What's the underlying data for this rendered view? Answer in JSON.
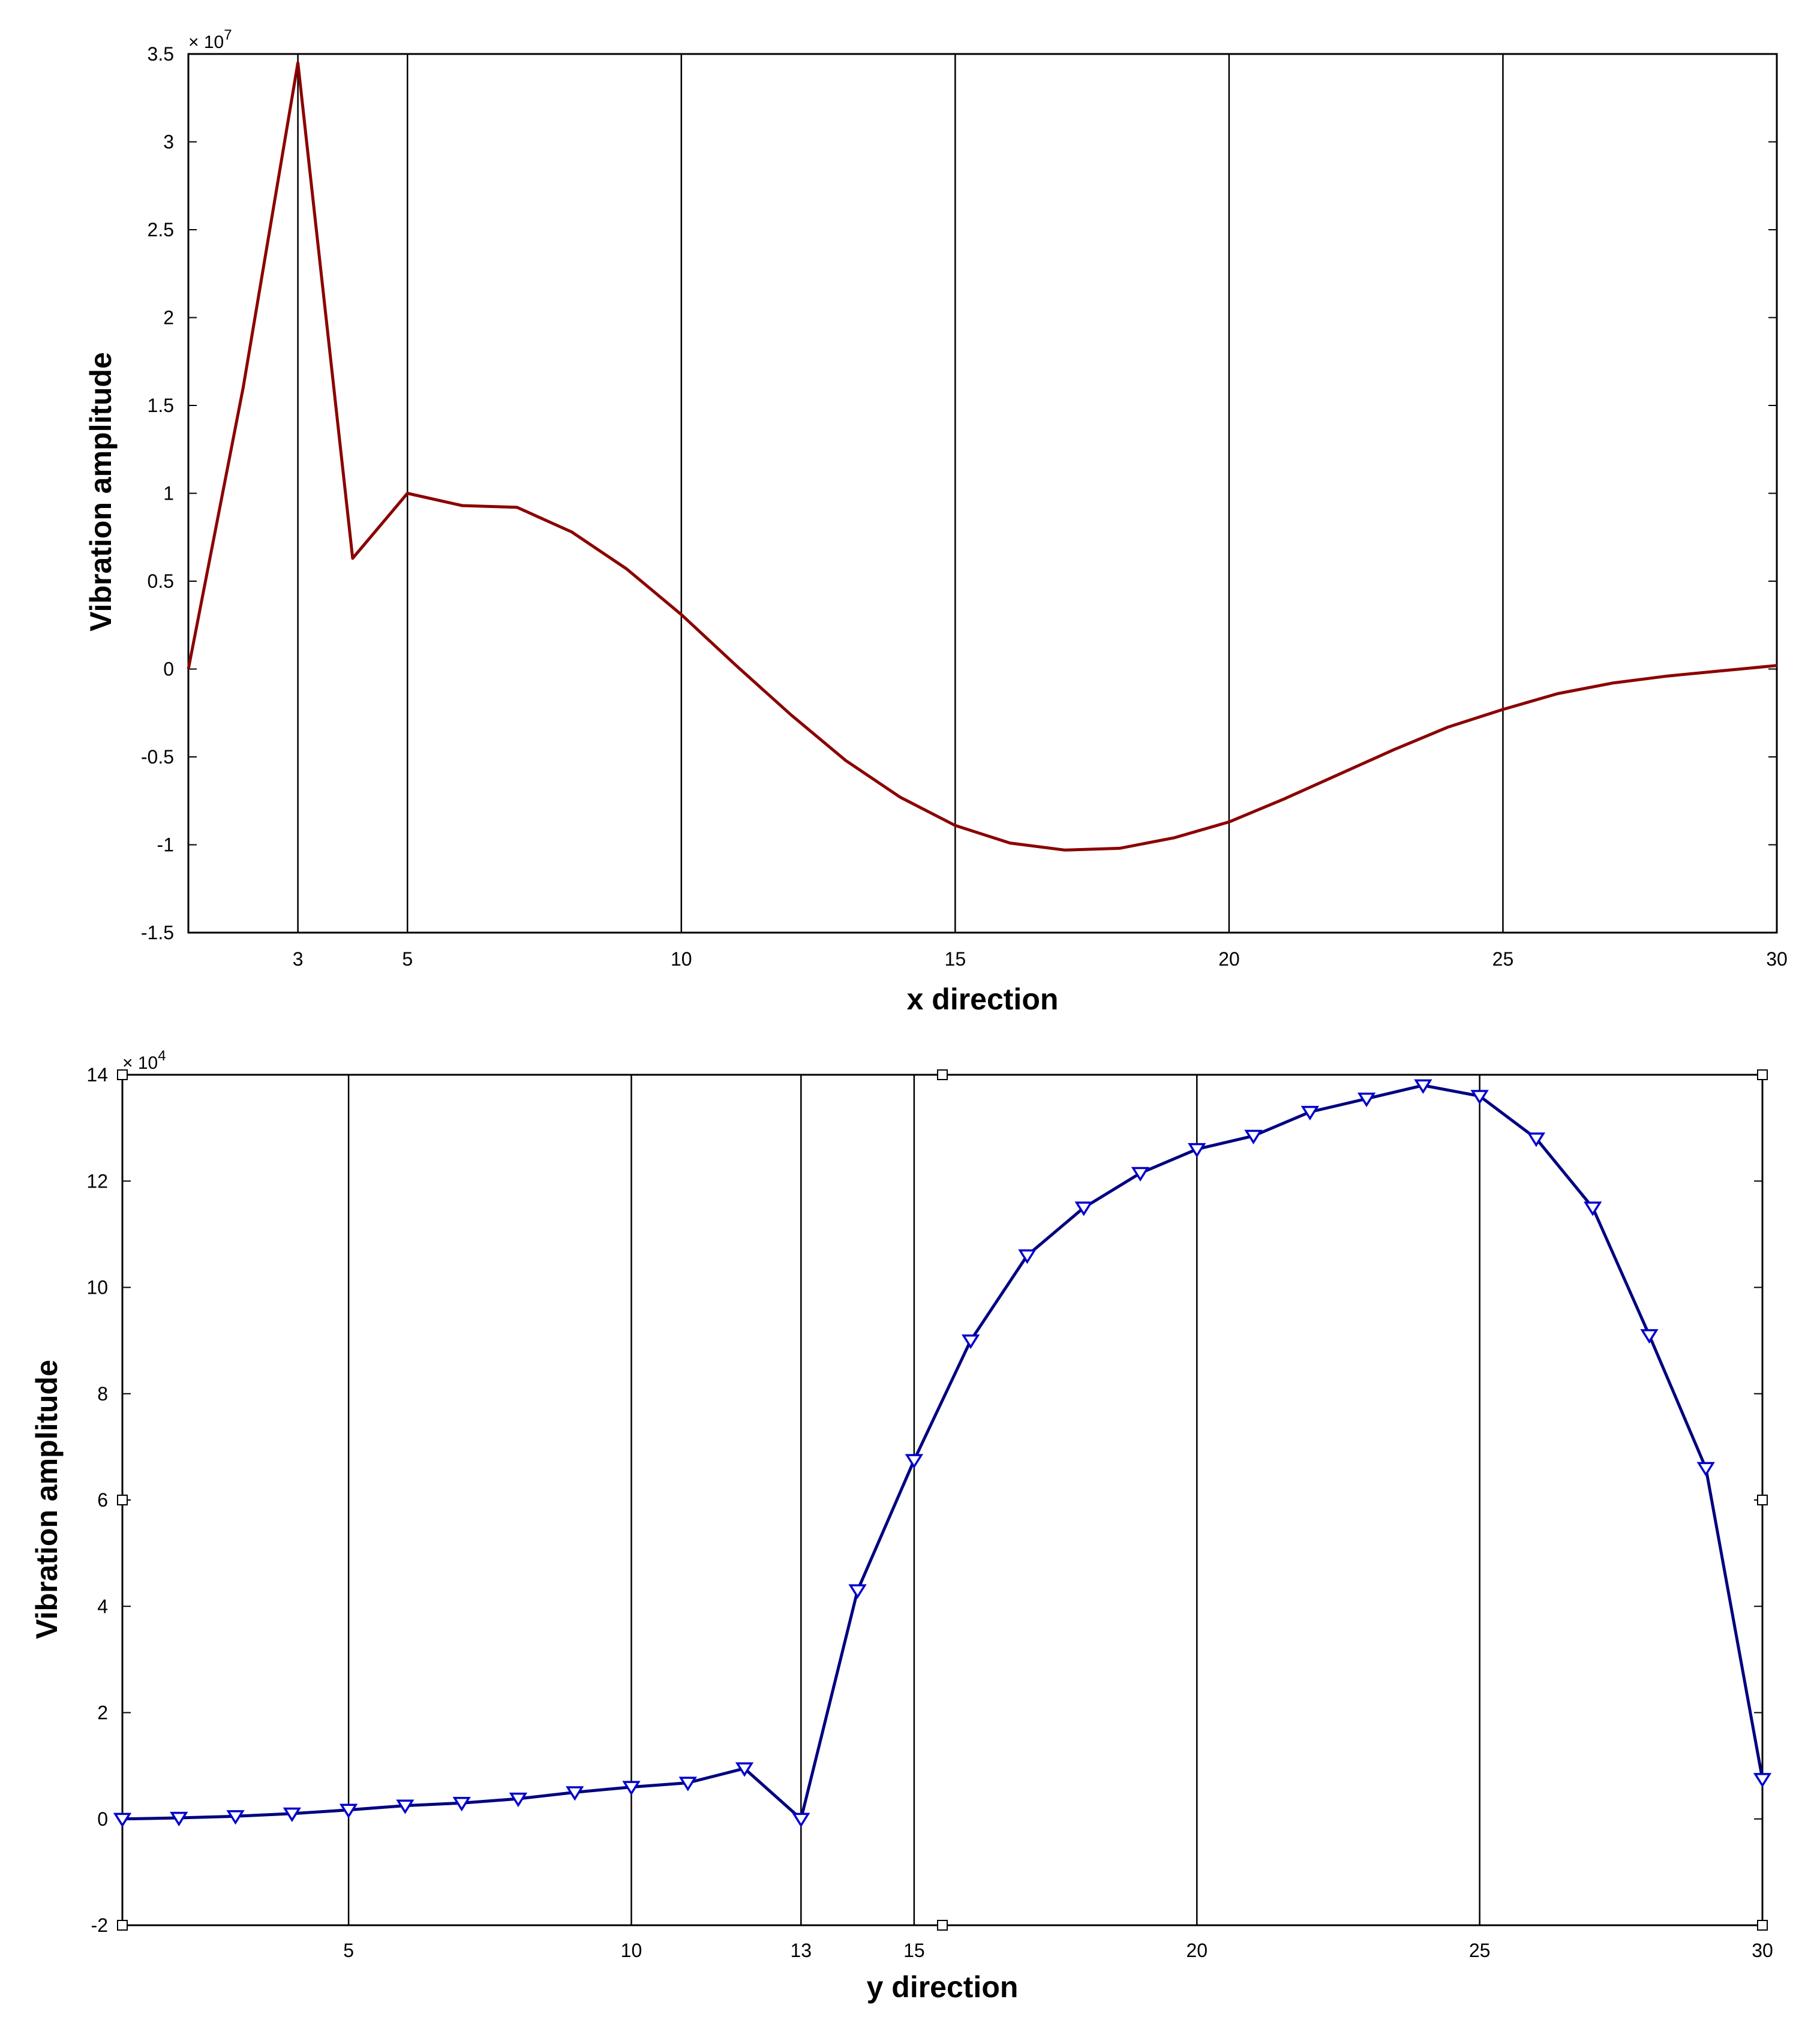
{
  "chart_data": [
    {
      "type": "line",
      "xlabel": "x direction",
      "ylabel": "Vibration amplitude",
      "y_multiplier_base": "× 10",
      "y_multiplier_exp": "7",
      "xlim": [
        1,
        30
      ],
      "ylim": [
        -1.5,
        3.5
      ],
      "xticks": [
        3,
        5,
        10,
        15,
        20,
        25,
        30
      ],
      "yticks": [
        -1.5,
        -1,
        -0.5,
        0,
        0.5,
        1,
        1.5,
        2,
        2.5,
        3,
        3.5
      ],
      "vertical_gridlines": [
        3,
        5,
        10,
        15,
        20,
        25
      ],
      "line_color": "#8b0000",
      "marker": "none",
      "series": [
        {
          "x": [
            1,
            2,
            3,
            4,
            5,
            6,
            7,
            8,
            9,
            10,
            11,
            12,
            13,
            14,
            15,
            16,
            17,
            18,
            19,
            20,
            21,
            22,
            23,
            24,
            25,
            26,
            27,
            28,
            29,
            30
          ],
          "y": [
            0,
            1.6,
            3.45,
            0.63,
            1.0,
            0.93,
            0.92,
            0.78,
            0.57,
            0.31,
            0.02,
            -0.26,
            -0.52,
            -0.73,
            -0.89,
            -0.99,
            -1.03,
            -1.02,
            -0.96,
            -0.87,
            -0.74,
            -0.6,
            -0.46,
            -0.33,
            -0.23,
            -0.14,
            -0.08,
            -0.04,
            -0.01,
            0.02
          ]
        }
      ]
    },
    {
      "type": "line",
      "xlabel": "y direction",
      "ylabel": "Vibration amplitude",
      "y_multiplier_base": "× 10",
      "y_multiplier_exp": "4",
      "xlim": [
        1,
        30
      ],
      "ylim": [
        -2,
        14
      ],
      "xticks": [
        5,
        10,
        13,
        15,
        20,
        25,
        30
      ],
      "yticks": [
        -2,
        0,
        2,
        4,
        6,
        8,
        10,
        12,
        14
      ],
      "vertical_gridlines": [
        5,
        10,
        13,
        15,
        20,
        25
      ],
      "line_color": "#000080",
      "marker_color": "#0000cd",
      "marker": "triangle-down",
      "series": [
        {
          "x": [
            1,
            2,
            3,
            4,
            5,
            6,
            7,
            8,
            9,
            10,
            11,
            12,
            13,
            14,
            15,
            16,
            17,
            18,
            19,
            20,
            21,
            22,
            23,
            24,
            25,
            26,
            27,
            28,
            29,
            30
          ],
          "y": [
            0,
            0.02,
            0.05,
            0.1,
            0.17,
            0.25,
            0.3,
            0.38,
            0.5,
            0.6,
            0.68,
            0.95,
            0,
            4.3,
            6.75,
            9.0,
            10.6,
            11.5,
            12.15,
            12.6,
            12.85,
            13.3,
            13.55,
            13.8,
            13.6,
            12.8,
            11.5,
            9.1,
            6.6,
            0.75
          ]
        }
      ]
    }
  ]
}
